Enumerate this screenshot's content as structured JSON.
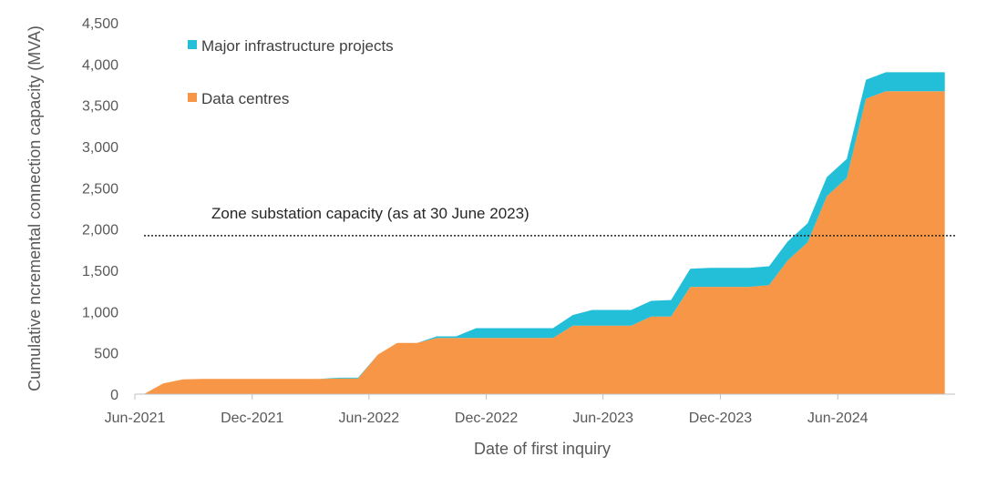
{
  "chart_data": {
    "type": "area",
    "stacked": true,
    "xlabel": "Date of first inquiry",
    "ylabel": "Cumulative ncremental connection capacity (MVA)",
    "ylim": [
      0,
      4500
    ],
    "xlim": [
      "2021-06-01",
      "2024-12-01"
    ],
    "y_ticks": [
      0,
      500,
      1000,
      1500,
      2000,
      2500,
      3000,
      3500,
      4000,
      4500
    ],
    "y_tick_labels": [
      "0",
      "500",
      "1,000",
      "1,500",
      "2,000",
      "2,500",
      "3,000",
      "3,500",
      "4,000",
      "4,500"
    ],
    "x_ticks": [
      "2021-06-01",
      "2021-12-01",
      "2022-06-01",
      "2022-12-01",
      "2023-06-01",
      "2023-12-01",
      "2024-06-01"
    ],
    "x_tick_labels": [
      "Jun-2021",
      "Dec-2021",
      "Jun-2022",
      "Dec-2022",
      "Jun-2023",
      "Dec-2023",
      "Jun-2024"
    ],
    "grid": false,
    "legend_position": "top-left",
    "x": [
      "2021-06-15",
      "2021-07-15",
      "2021-08-15",
      "2021-09-15",
      "2021-10-15",
      "2021-11-15",
      "2021-12-15",
      "2022-01-15",
      "2022-02-15",
      "2022-03-15",
      "2022-04-15",
      "2022-05-15",
      "2022-06-15",
      "2022-07-15",
      "2022-08-15",
      "2022-09-15",
      "2022-10-15",
      "2022-11-15",
      "2022-12-15",
      "2023-01-15",
      "2023-02-15",
      "2023-03-15",
      "2023-04-15",
      "2023-05-15",
      "2023-06-15",
      "2023-07-15",
      "2023-08-15",
      "2023-09-15",
      "2023-10-15",
      "2023-11-15",
      "2023-12-15",
      "2024-01-15",
      "2024-02-15",
      "2024-03-15",
      "2024-04-15",
      "2024-05-15",
      "2024-06-15",
      "2024-07-15",
      "2024-08-15",
      "2024-09-15",
      "2024-10-15",
      "2024-11-15"
    ],
    "series": [
      {
        "name": "Data centres",
        "color": "#F79646",
        "values": [
          0,
          130,
          180,
          185,
          185,
          185,
          185,
          185,
          185,
          185,
          190,
          190,
          480,
          620,
          620,
          680,
          680,
          680,
          680,
          680,
          680,
          680,
          830,
          830,
          830,
          830,
          940,
          940,
          1300,
          1300,
          1300,
          1300,
          1320,
          1620,
          1840,
          2400,
          2620,
          3580,
          3670,
          3670,
          3670,
          3670
        ]
      },
      {
        "name": "Major infrastructure projects",
        "color": "#23BFD8",
        "values": [
          0,
          0,
          0,
          0,
          0,
          0,
          0,
          0,
          0,
          0,
          10,
          10,
          0,
          0,
          0,
          20,
          20,
          120,
          120,
          120,
          120,
          120,
          130,
          190,
          190,
          190,
          190,
          200,
          220,
          230,
          230,
          230,
          230,
          230,
          230,
          230,
          230,
          230,
          230,
          230,
          230,
          230
        ]
      }
    ],
    "annotations": [
      {
        "text": "Zone substation capacity (as at 30 June 2023)",
        "y": 1920,
        "style": "dotted"
      }
    ]
  }
}
